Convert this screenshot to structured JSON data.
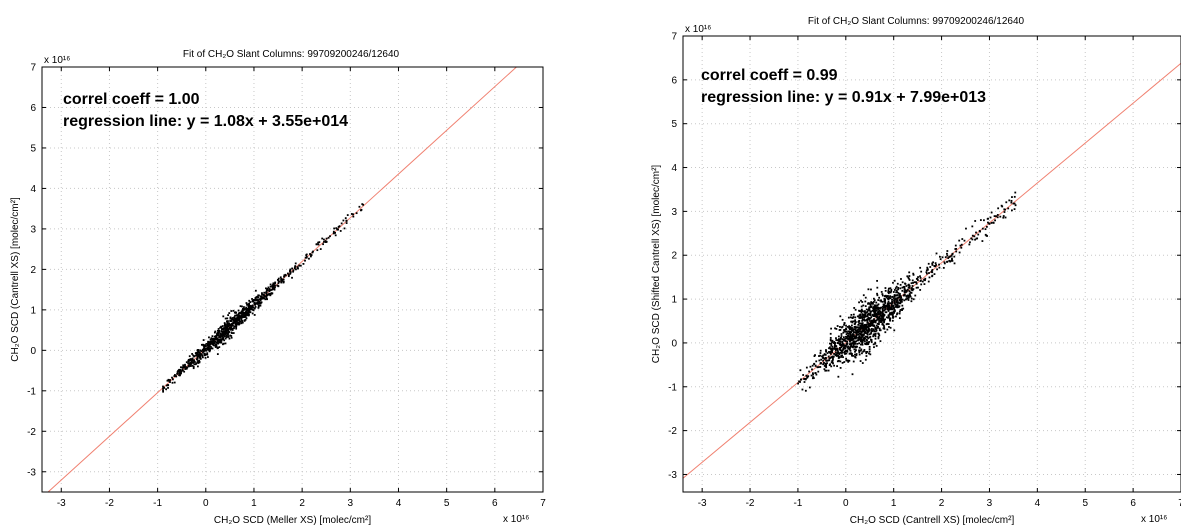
{
  "chart_data": [
    {
      "type": "scatter",
      "title": "Fit of CH₂O Slant Columns: 99709200246/12640",
      "xlabel": "CH₂O SCD (Meller XS) [molec/cm²]",
      "ylabel": "CH₂O SCD (Cantrell XS) [molec/cm²]",
      "xlim": [
        -3.4,
        7
      ],
      "ylim": [
        -3.5,
        7
      ],
      "x_ticks": [
        -3,
        -2,
        -1,
        0,
        1,
        2,
        3,
        4,
        5,
        6,
        7
      ],
      "y_ticks": [
        -3,
        -2,
        -1,
        0,
        1,
        2,
        3,
        4,
        5,
        6,
        7
      ],
      "x_multiplier": "x 10¹⁶",
      "y_multiplier": "x 10¹⁶",
      "grid": true,
      "annotations": [
        "correl coeff = 1.00",
        "regression line: y = 1.08x + 3.55e+014"
      ],
      "regression": {
        "slope": 1.08,
        "intercept": 0.0355
      },
      "point_range": {
        "x": [
          -0.9,
          3.3
        ]
      },
      "spread": 0.06,
      "colors": {
        "points": "#000000",
        "line": "#f08070",
        "grid": "#c8c8c8"
      }
    },
    {
      "type": "scatter",
      "title": "Fit of CH₂O Slant Columns: 99709200246/12640",
      "xlabel": "CH₂O SCD (Cantrell XS) [molec/cm²]",
      "ylabel": "CH₂O SCD (Shifted Cantrell XS) [molec/cm²]",
      "xlim": [
        -3.4,
        7
      ],
      "ylim": [
        -3.4,
        7
      ],
      "x_ticks": [
        -3,
        -2,
        -1,
        0,
        1,
        2,
        3,
        4,
        5,
        6,
        7
      ],
      "y_ticks": [
        -3,
        -2,
        -1,
        0,
        1,
        2,
        3,
        4,
        5,
        6,
        7
      ],
      "x_multiplier": "x 10¹⁶",
      "y_multiplier": "x 10¹⁶",
      "grid": true,
      "annotations": [
        "correl coeff = 0.99",
        "regression line: y = 0.91x + 7.99e+013"
      ],
      "regression": {
        "slope": 0.91,
        "intercept": 0.00799
      },
      "point_range": {
        "x": [
          -1.0,
          3.6
        ]
      },
      "spread": 0.14,
      "colors": {
        "points": "#000000",
        "line": "#f08070",
        "grid": "#c8c8c8"
      }
    }
  ]
}
